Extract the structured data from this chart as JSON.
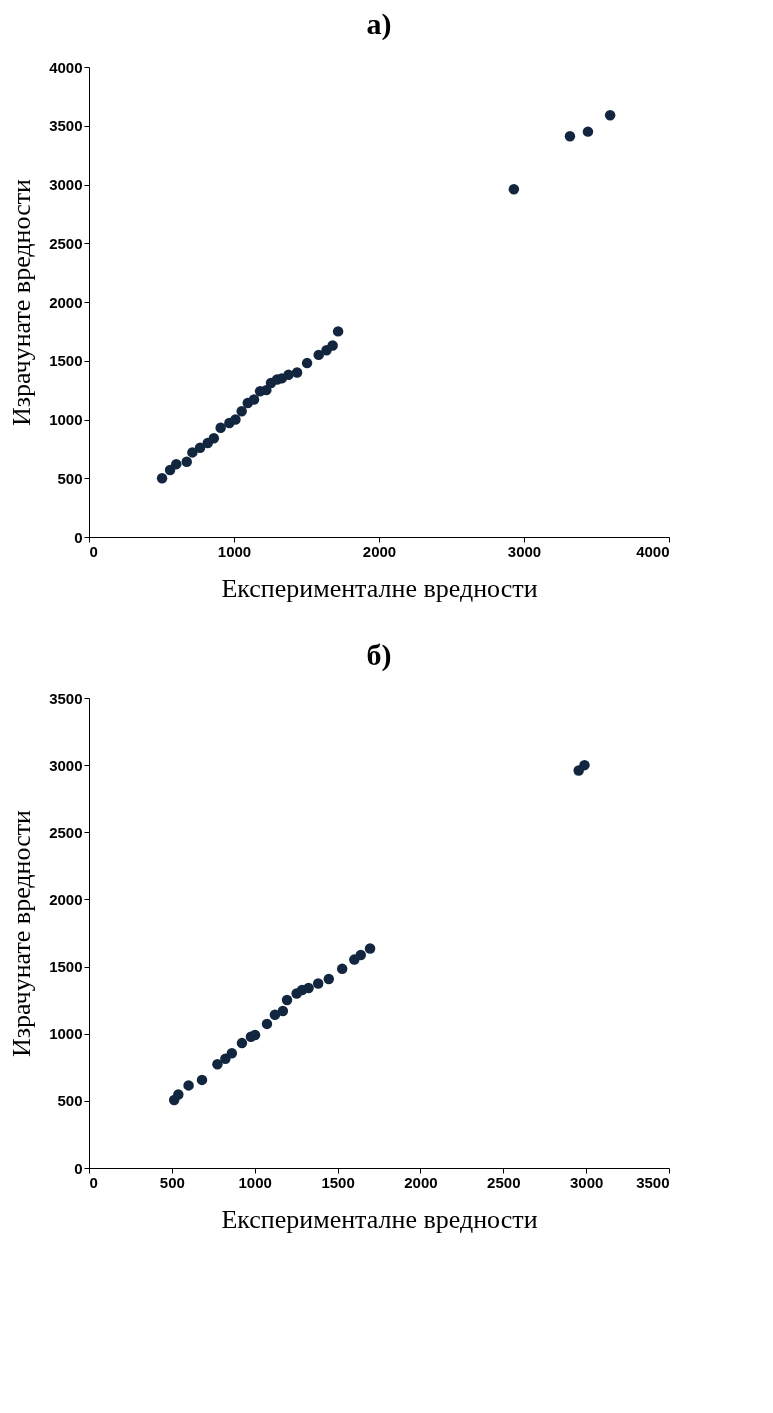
{
  "chart_data": [
    {
      "type": "scatter",
      "title": "а)",
      "xlabel": "Експерименталне вредности",
      "ylabel": "Израчунате вредности",
      "xlim": [
        0,
        4000
      ],
      "ylim": [
        0,
        4000
      ],
      "xticks": [
        0,
        1000,
        2000,
        3000,
        4000
      ],
      "yticks": [
        0,
        500,
        1000,
        1500,
        2000,
        2500,
        3000,
        3500,
        4000
      ],
      "grid": false,
      "marker": "circle",
      "legend": false,
      "series": [
        {
          "color": "#13263f",
          "x": [
            504,
            559,
            602,
            674,
            713,
            766,
            819,
            861,
            908,
            968,
            1010,
            1053,
            1095,
            1138,
            1180,
            1223,
            1255,
            1297,
            1329,
            1376,
            1435,
            1504,
            1584,
            1638,
            1680,
            1718,
            2930,
            3317,
            3441,
            3594
          ],
          "values": [
            500,
            570,
            620,
            640,
            720,
            760,
            800,
            840,
            930,
            970,
            1000,
            1070,
            1140,
            1170,
            1240,
            1250,
            1310,
            1340,
            1350,
            1380,
            1400,
            1480,
            1550,
            1590,
            1630,
            1750,
            2960,
            3410,
            3450,
            3590
          ]
        }
      ]
    },
    {
      "type": "scatter",
      "title": "б)",
      "xlabel": "Експерименталне вредности",
      "ylabel": "Израчунате вредности",
      "xlim": [
        0,
        3500
      ],
      "ylim": [
        0,
        3500
      ],
      "xticks": [
        0,
        500,
        1000,
        1500,
        2000,
        2500,
        3000,
        3500
      ],
      "yticks": [
        0,
        500,
        1000,
        1500,
        2000,
        2500,
        3000,
        3500
      ],
      "grid": false,
      "marker": "circle",
      "legend": false,
      "series": [
        {
          "color": "#13263f",
          "x": [
            514,
            539,
            601,
            682,
            775,
            823,
            862,
            923,
            977,
            1002,
            1074,
            1122,
            1170,
            1195,
            1253,
            1286,
            1325,
            1383,
            1447,
            1528,
            1601,
            1640,
            1696,
            2955,
            2990
          ],
          "values": [
            506,
            547,
            615,
            656,
            772,
            813,
            854,
            930,
            978,
            991,
            1073,
            1141,
            1169,
            1251,
            1299,
            1326,
            1340,
            1374,
            1408,
            1483,
            1552,
            1586,
            1634,
            2960,
            3000
          ]
        }
      ]
    }
  ]
}
